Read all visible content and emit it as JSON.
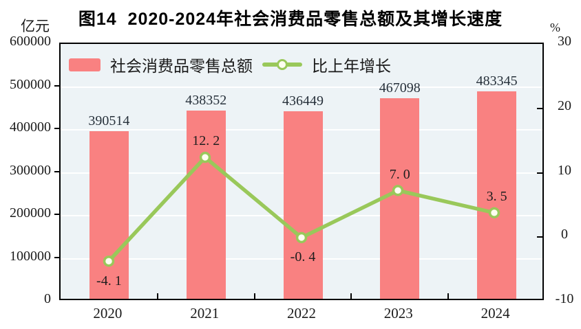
{
  "title": "图14  2020-2024年社会消费品零售总额及其增长速度",
  "left_axis": {
    "unit": "亿元",
    "min": 0,
    "max": 600000,
    "step": 100000,
    "tick_labels": [
      "600000",
      "500000",
      "400000",
      "300000",
      "200000",
      "100000",
      "0"
    ]
  },
  "right_axis": {
    "unit": "%",
    "min": -10,
    "max": 30,
    "step": 10,
    "tick_labels": [
      "30",
      "20",
      "10",
      "0",
      "-10"
    ],
    "inner_tick_values": [
      20,
      10,
      0
    ]
  },
  "legend": [
    {
      "label": "社会消费品零售总额",
      "type": "bar"
    },
    {
      "label": "比上年增长",
      "type": "line"
    }
  ],
  "colors": {
    "bar": "#f98181",
    "line": "#99c85a",
    "marker_fill": "#fdfef0",
    "plot_background": "#edf3f6",
    "gridline": "#ffffff",
    "axis": "#000000"
  },
  "chart_data": {
    "type": "bar",
    "categories": [
      "2020",
      "2021",
      "2022",
      "2023",
      "2024"
    ],
    "series": [
      {
        "name": "社会消费品零售总额",
        "type": "bar",
        "axis": "left",
        "values": [
          390514,
          438352,
          436449,
          467098,
          483345
        ],
        "labels": [
          "390514",
          "438352",
          "436449",
          "467098",
          "483345"
        ]
      },
      {
        "name": "比上年增长",
        "type": "line",
        "axis": "right",
        "values": [
          -4.1,
          12.2,
          -0.4,
          7.0,
          3.5
        ],
        "labels": [
          "-4. 1",
          "12. 2",
          "-0. 4",
          "7. 0",
          "3. 5"
        ],
        "label_side": [
          "below",
          "above",
          "below",
          "above",
          "above"
        ]
      }
    ],
    "title": "图14 2020-2024年社会消费品零售总额及其增长速度",
    "xlabel": "",
    "ylabel_left": "亿元",
    "ylabel_right": "%",
    "ylim_left": [
      0,
      600000
    ],
    "ylim_right": [
      -10,
      30
    ],
    "grid": true,
    "legend_position": "top-left-inside"
  }
}
